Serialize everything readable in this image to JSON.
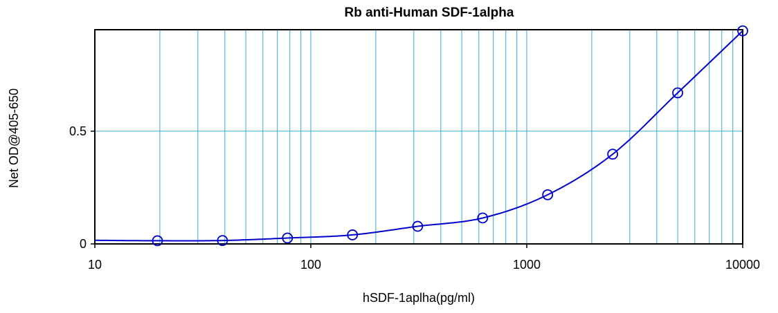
{
  "chart_data": {
    "type": "scatter",
    "title": "Rb anti-Human SDF-1alpha",
    "xlabel": "hSDF-1aplha(pg/ml)",
    "ylabel": "Net OD@405-650",
    "x_scale": "log",
    "xlim": [
      10,
      10000
    ],
    "ylim": [
      0,
      0.95
    ],
    "x_ticks": [
      {
        "value": 10,
        "label": "10"
      },
      {
        "value": 100,
        "label": "100"
      },
      {
        "value": 1000,
        "label": "1000"
      },
      {
        "value": 10000,
        "label": "10000"
      }
    ],
    "y_ticks": [
      {
        "value": 0,
        "label": "0"
      },
      {
        "value": 0.5,
        "label": "0.5"
      }
    ],
    "grid": true,
    "series": [
      {
        "x": [
          19.5,
          39,
          78,
          156,
          312.5,
          625,
          1250,
          2500,
          5000,
          10000
        ],
        "y": [
          0.014,
          0.015,
          0.026,
          0.04,
          0.078,
          0.115,
          0.218,
          0.398,
          0.67,
          0.945
        ],
        "color": "#0000cc",
        "marker": "circle",
        "fit": "curve"
      }
    ],
    "grid_color": "#3aa6d6"
  }
}
